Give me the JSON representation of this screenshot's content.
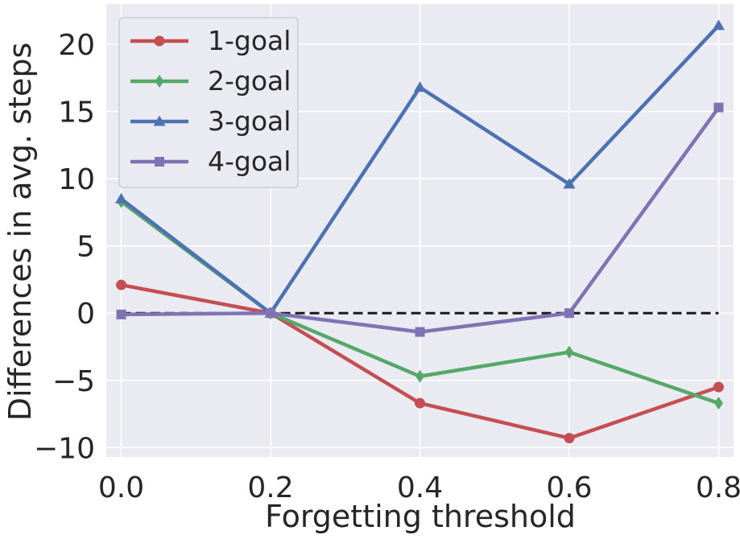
{
  "chart_data": {
    "type": "line",
    "title": "",
    "xlabel": "Forgetting threshold",
    "ylabel": "Differences in avg. steps",
    "x": [
      0.0,
      0.2,
      0.4,
      0.6,
      0.8
    ],
    "x_tick_labels": [
      "0.0",
      "0.2",
      "0.4",
      "0.6",
      "0.8"
    ],
    "y_ticks": [
      -10,
      -5,
      0,
      5,
      10,
      15,
      20
    ],
    "y_tick_labels": [
      "−10",
      "−5",
      "0",
      "5",
      "10",
      "15",
      "20"
    ],
    "xlim": [
      -0.02,
      0.82
    ],
    "ylim": [
      -10.7,
      23.0
    ],
    "grid": true,
    "legend_position": "top-left",
    "reference_line": {
      "y": 0,
      "style": "dashed",
      "color": "#1a1a1a"
    },
    "series": [
      {
        "name": "1-goal",
        "color": "#c44e52",
        "marker": "circle",
        "values": [
          2.1,
          0.0,
          -6.7,
          -9.3,
          -5.5
        ]
      },
      {
        "name": "2-goal",
        "color": "#55a868",
        "marker": "diamond",
        "values": [
          8.3,
          0.0,
          -4.7,
          -2.9,
          -6.7
        ]
      },
      {
        "name": "3-goal",
        "color": "#4c72b0",
        "marker": "triangle",
        "values": [
          8.5,
          0.0,
          16.8,
          9.6,
          21.4
        ]
      },
      {
        "name": "4-goal",
        "color": "#8172b3",
        "marker": "square",
        "values": [
          -0.1,
          0.0,
          -1.4,
          0.0,
          15.3
        ]
      }
    ]
  }
}
